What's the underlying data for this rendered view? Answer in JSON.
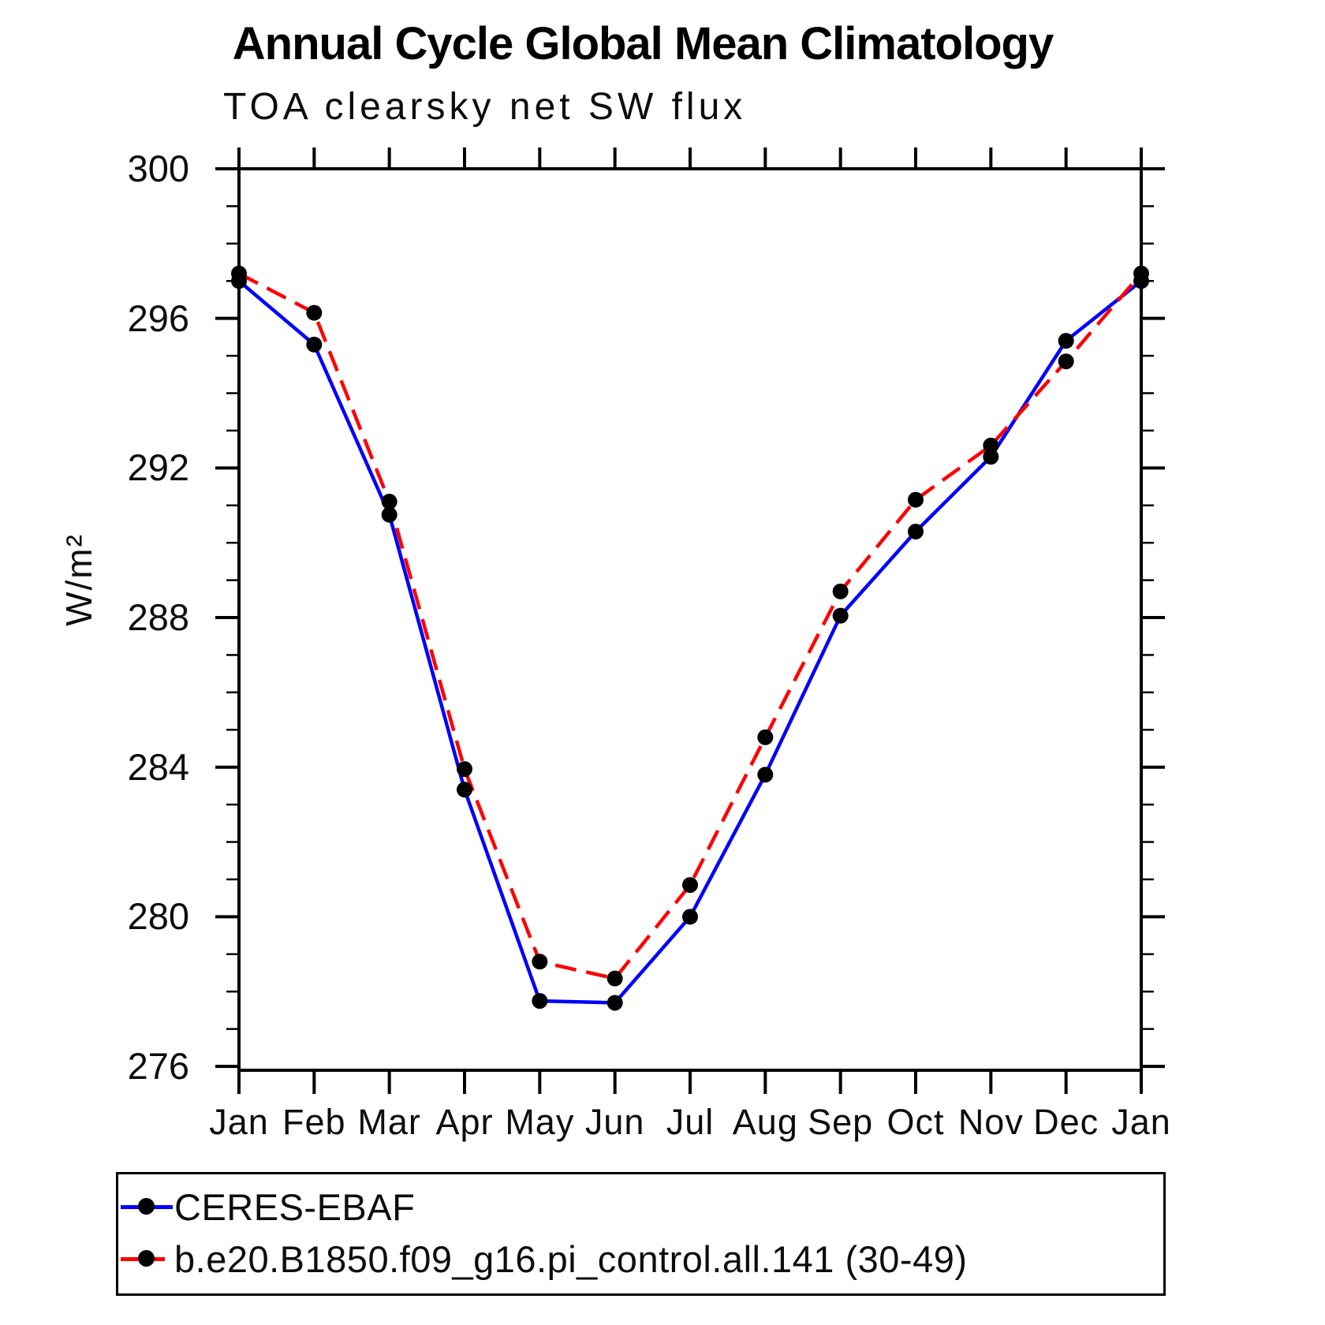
{
  "chart_data": {
    "type": "line",
    "title": "Annual Cycle Global Mean Climatology",
    "subtitle": "TOA clearsky net SW flux",
    "ylabel": "W/m²",
    "xlabel": "",
    "categories": [
      "Jan",
      "Feb",
      "Mar",
      "Apr",
      "May",
      "Jun",
      "Jul",
      "Aug",
      "Sep",
      "Oct",
      "Nov",
      "Dec",
      "Jan"
    ],
    "series": [
      {
        "name": "CERES-EBAF",
        "color": "#0000ff",
        "style": "solid",
        "marker": "circle",
        "marker_color": "#000000",
        "values": [
          297.0,
          295.3,
          290.75,
          283.4,
          277.75,
          277.7,
          280.0,
          283.8,
          288.05,
          290.3,
          292.3,
          295.4,
          297.0
        ]
      },
      {
        "name": "b.e20.B1850.f09_g16.pi_control.all.141 (30-49)",
        "color": "#ff0000",
        "style": "dashed",
        "marker": "circle",
        "marker_color": "#000000",
        "values": [
          297.2,
          296.15,
          291.1,
          283.95,
          278.8,
          278.35,
          280.85,
          284.8,
          288.7,
          291.15,
          292.6,
          294.85,
          297.2
        ]
      }
    ],
    "ylim": [
      276,
      300
    ],
    "yticks": [
      300,
      296,
      292,
      288,
      284,
      280,
      276
    ],
    "minor_tick_interval": 1,
    "grid": false,
    "legend_position": "bottom",
    "axis_color": "#000000"
  }
}
